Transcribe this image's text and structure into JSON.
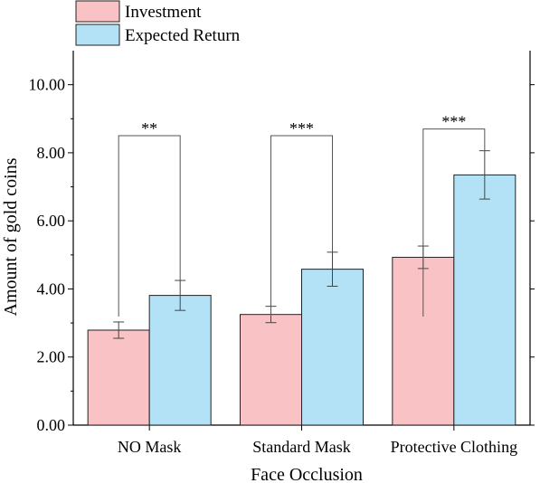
{
  "chart_data": {
    "type": "bar",
    "categories": [
      "NO Mask",
      "Standard Mask",
      "Protective Clothing"
    ],
    "series": [
      {
        "name": "Investment",
        "color": "#f9c3c5",
        "values": [
          2.79,
          3.25,
          4.93
        ],
        "error_low": [
          2.55,
          3.01,
          4.6
        ],
        "error_high": [
          3.03,
          3.49,
          5.26
        ]
      },
      {
        "name": "Expected Return",
        "color": "#b3e2f7",
        "values": [
          3.81,
          4.58,
          7.35
        ],
        "error_low": [
          3.37,
          4.08,
          6.64
        ],
        "error_high": [
          4.25,
          5.08,
          8.06
        ]
      }
    ],
    "significance": [
      "**",
      "***",
      "***"
    ],
    "xlabel": "Face Occlusion",
    "ylabel": "Amount of gold coins",
    "ylim": [
      0,
      11
    ],
    "yticks": [
      0,
      2,
      4,
      6,
      8,
      10
    ],
    "ytick_labels": [
      "0.00",
      "2.00",
      "4.00",
      "6.00",
      "8.00",
      "10.00"
    ],
    "grid": false,
    "legend_position": "top-left"
  }
}
